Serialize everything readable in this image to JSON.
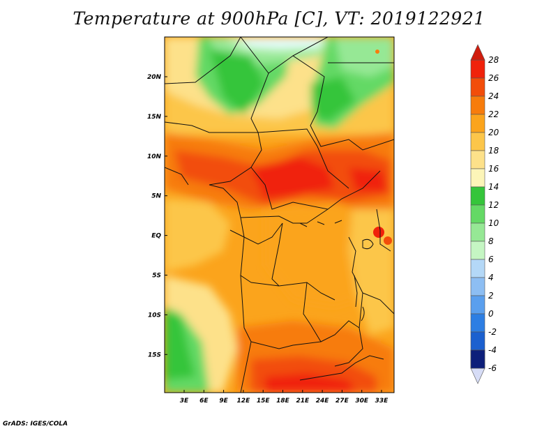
{
  "title": "Temperature at 900hPa [C], VT: 2019122921",
  "credit": "GrADS: IGES/COLA",
  "map": {
    "variable": "Temperature",
    "level": "900hPa",
    "units": "C",
    "valid_time": "2019122921",
    "lat_labels": [
      "20N",
      "15N",
      "10N",
      "5N",
      "EQ",
      "5S",
      "10S",
      "15S"
    ],
    "lon_labels": [
      "3E",
      "6E",
      "9E",
      "12E",
      "15E",
      "18E",
      "21E",
      "24E",
      "27E",
      "30E",
      "33E"
    ]
  },
  "colorbar": {
    "labels": [
      "28",
      "26",
      "24",
      "22",
      "20",
      "18",
      "16",
      "14",
      "12",
      "10",
      "8",
      "6",
      "4",
      "2",
      "0",
      "-2",
      "-4",
      "-6"
    ],
    "colors": [
      "#f0220b",
      "#f24d0a",
      "#f77c0c",
      "#fba41c",
      "#fcc64a",
      "#fde18a",
      "#fcf5b8",
      "#35c53a",
      "#64d965",
      "#96e895",
      "#c5f6c3",
      "#b4d8f7",
      "#8dbef3",
      "#5a9fee",
      "#2d7ee3",
      "#1b60cf",
      "#1443b0",
      "#0d1f7a"
    ],
    "top_cap_color": "#d01c0d",
    "bottom_cap_color": "#d6dcf6"
  }
}
